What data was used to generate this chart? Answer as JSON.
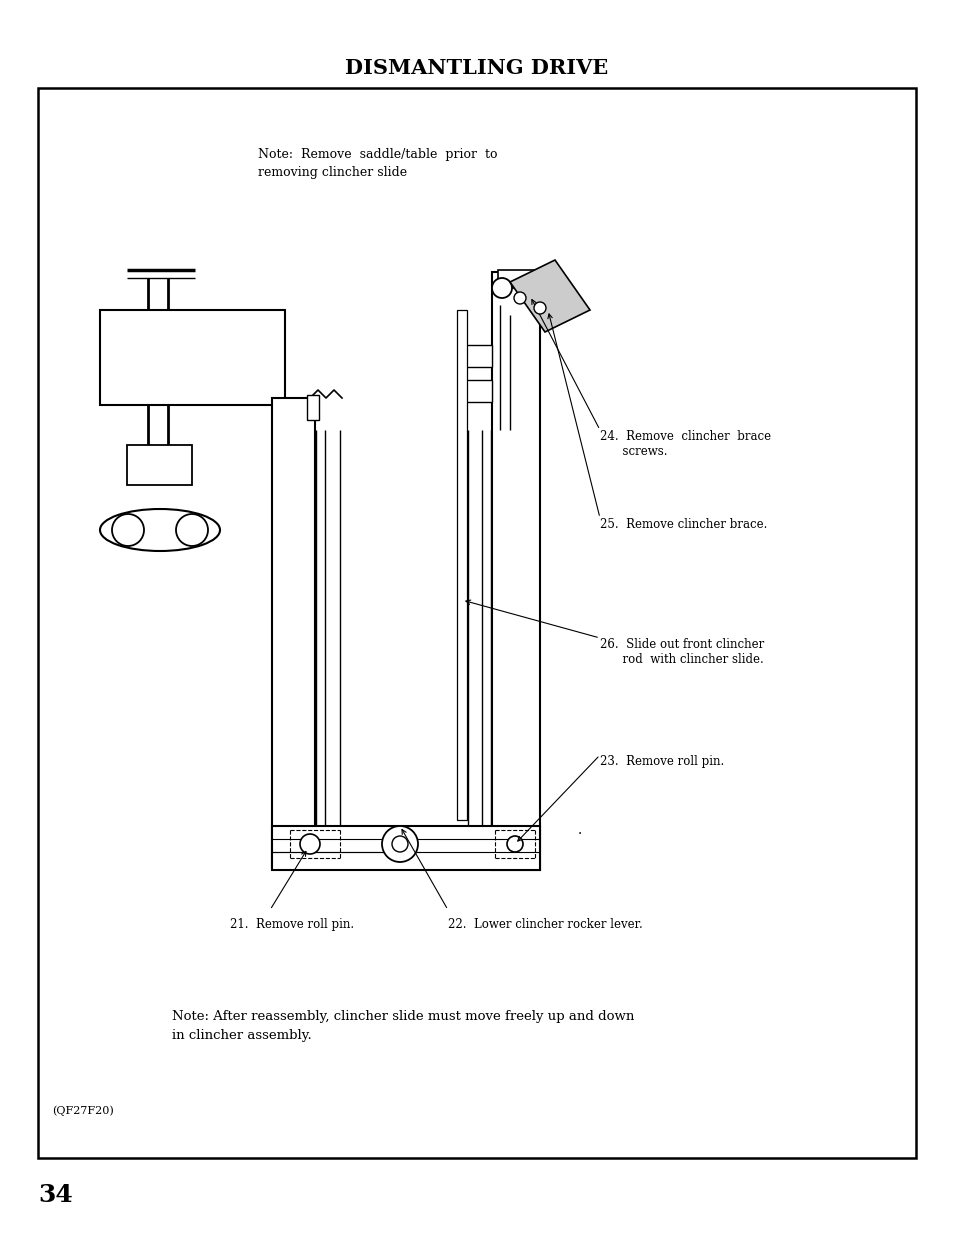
{
  "title": "DISMANTLING DRIVE",
  "title_fontsize": 15,
  "page_number": "34",
  "page_num_fontsize": 18,
  "note_top_line1": "Note:  Remove  saddle/table  prior  to",
  "note_top_line2": "removing clincher slide",
  "note_bottom": "Note: After reassembly, clincher slide must move freely up and down\nin clincher assembly.",
  "code_label": "(QF27F20)",
  "background_color": "#ffffff",
  "text_color": "#000000",
  "ann24_text": "24.  Remove  clincher  brace\n      screws.",
  "ann25_text": "25.  Remove clincher brace.",
  "ann26_text": "26.  Slide out front clincher\n      rod  with clincher slide.",
  "ann23_text": "23.  Remove roll pin.",
  "ann22_text": "22.  Lower clincher rocker lever.",
  "ann21_text": "21.  Remove roll pin."
}
